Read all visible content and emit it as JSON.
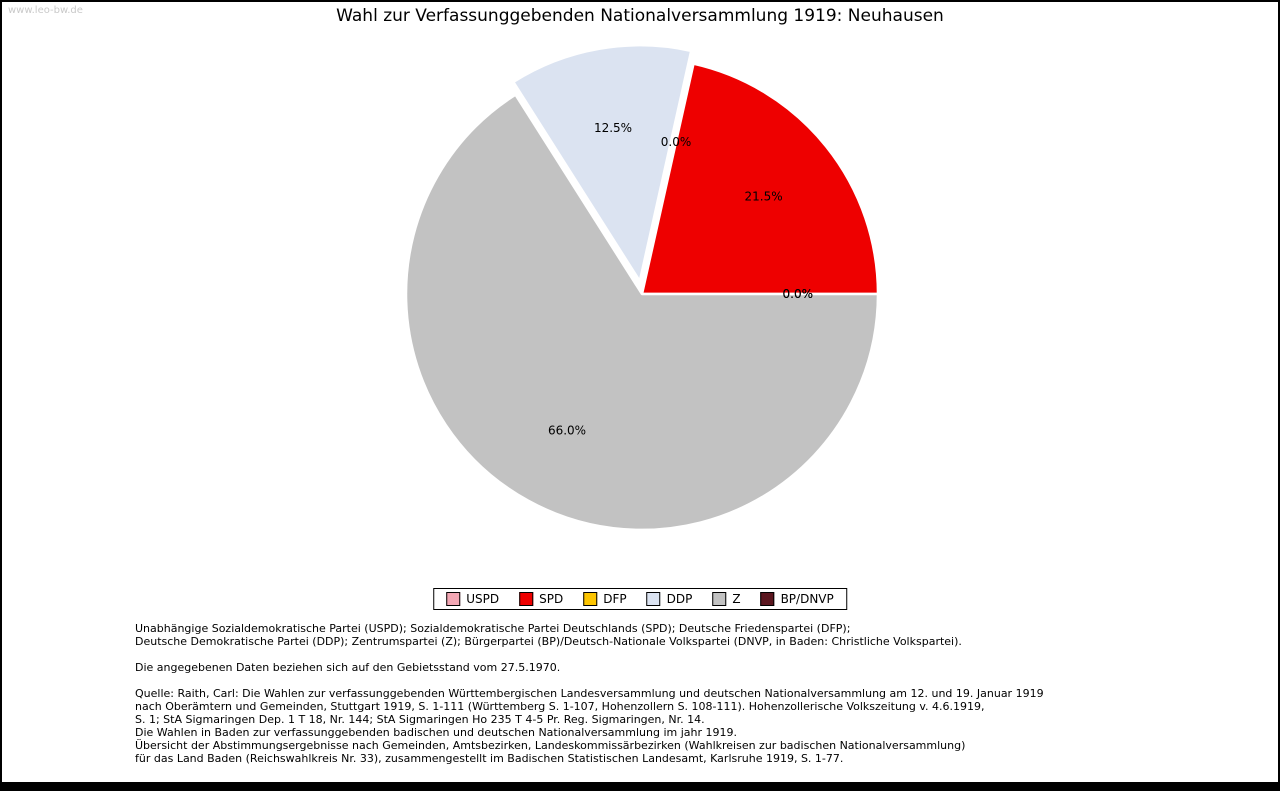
{
  "page": {
    "watermark": "www.leo-bw.de"
  },
  "chart_data": {
    "type": "pie",
    "title": "Wahl zur Verfassunggebenden Nationalversammlung 1919: Neuhausen",
    "categories": [
      "USPD",
      "SPD",
      "DFP",
      "DDP",
      "Z",
      "BP/DNVP"
    ],
    "values": [
      0.0,
      21.5,
      0.0,
      12.5,
      66.0,
      0.0
    ],
    "labels": [
      "0.0%",
      "21.5%",
      "0.0%",
      "12.5%",
      "66.0%",
      "0.0%"
    ],
    "colors": [
      "#f3a7b4",
      "#ee0000",
      "#fdc500",
      "#dbe3f1",
      "#c2c2c2",
      "#5b161f"
    ],
    "exploded": [
      false,
      false,
      false,
      true,
      false,
      false
    ],
    "start_angle_deg": 0,
    "direction": "counterclockwise",
    "legend_position": "bottom",
    "label_color": "#000000",
    "wedge_edge_color": "#ffffff"
  },
  "footnotes": {
    "party_names": [
      "Unabhängige Sozialdemokratische Partei (USPD); Sozialdemokratische Partei Deutschlands (SPD); Deutsche Friedenspartei (DFP);",
      "Deutsche Demokratische Partei (DDP); Zentrumspartei (Z); Bürgerpartei (BP)/Deutsch-Nationale Volkspartei (DNVP, in Baden: Christliche Volkspartei)."
    ],
    "data_note": "Die angegebenen Daten beziehen sich auf den Gebietsstand vom 27.5.1970.",
    "source": [
      "Quelle: Raith, Carl: Die Wahlen zur verfassunggebenden Württembergischen Landesversammlung und deutschen Nationalversammlung am 12. und 19. Januar 1919",
      "nach Oberämtern und Gemeinden, Stuttgart 1919, S. 1-111 (Württemberg S. 1-107, Hohenzollern S. 108-111). Hohenzollerische Volkszeitung v. 4.6.1919,",
      "S. 1; StA Sigmaringen Dep. 1 T 18, Nr. 144; StA Sigmaringen Ho 235 T 4-5 Pr. Reg. Sigmaringen, Nr. 14.",
      "Die Wahlen in Baden zur verfassunggebenden badischen und deutschen Nationalversammlung im jahr 1919.",
      "Übersicht der Abstimmungsergebnisse nach Gemeinden, Amtsbezirken, Landeskommissärbezirken (Wahlkreisen zur badischen Nationalversammlung)",
      "für das Land Baden (Reichswahlkreis Nr. 33), zusammengestellt im Badischen Statistischen Landesamt, Karlsruhe 1919, S. 1-77."
    ]
  }
}
